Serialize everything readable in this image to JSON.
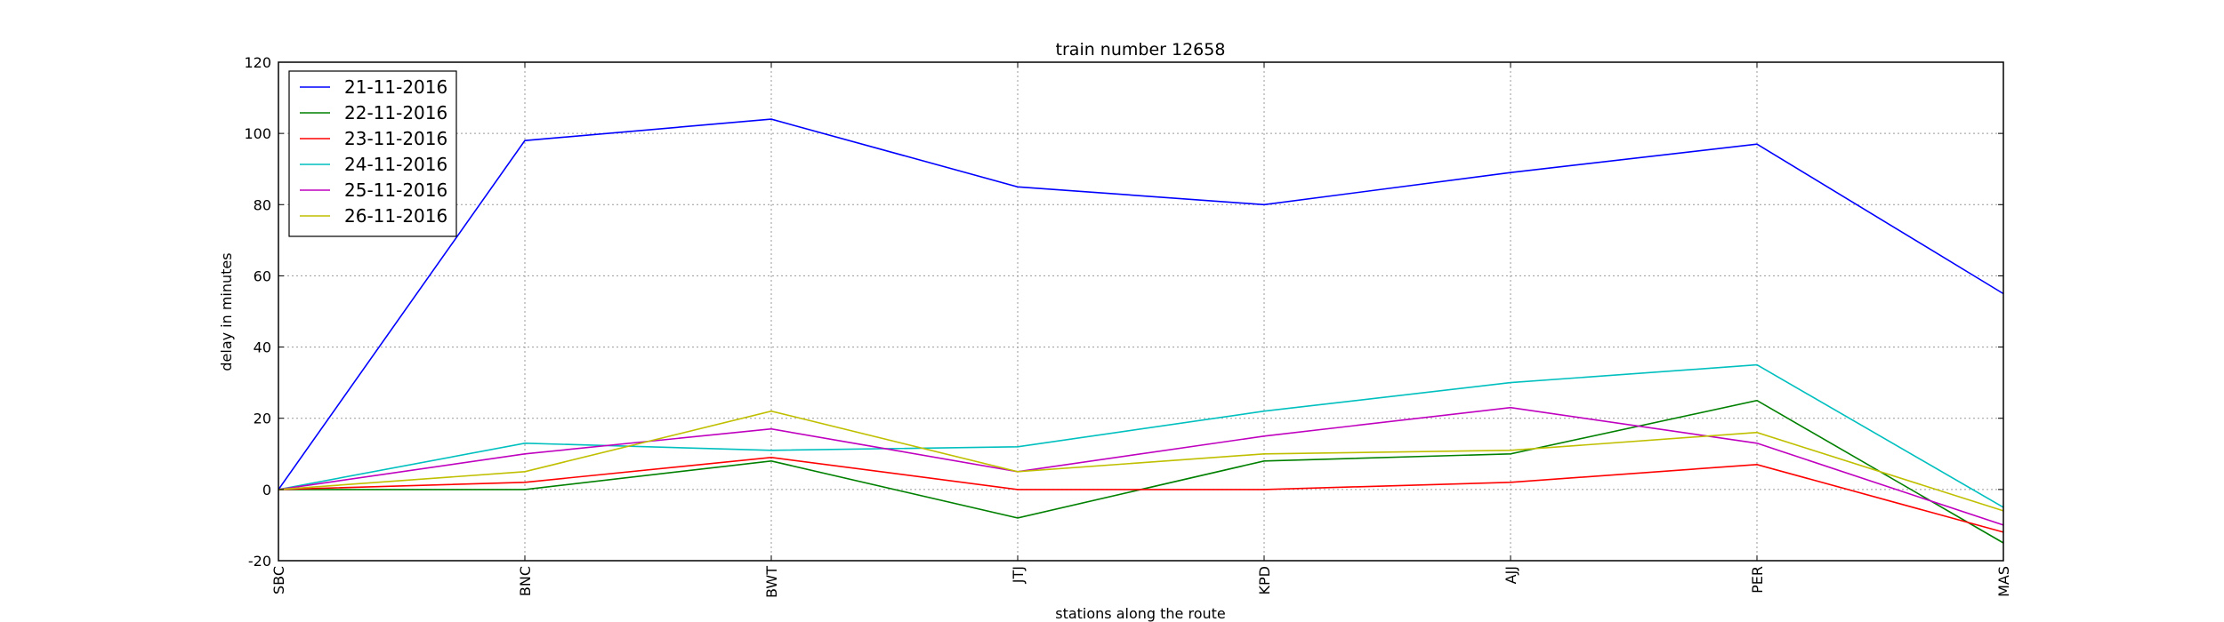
{
  "chart_data": {
    "type": "line",
    "title": "train number 12658",
    "xlabel": "stations along the route",
    "ylabel": "delay in minutes",
    "categories": [
      "SBC",
      "BNC",
      "BWT",
      "JTJ",
      "KPD",
      "AJJ",
      "PER",
      "MAS"
    ],
    "ylim": [
      -20,
      120
    ],
    "yticks": [
      -20,
      0,
      20,
      40,
      60,
      80,
      100,
      120
    ],
    "grid": true,
    "legend_position": "top-left",
    "series": [
      {
        "name": "21-11-2016",
        "color": "#0000ff",
        "values": [
          0,
          98,
          104,
          85,
          80,
          89,
          97,
          55
        ]
      },
      {
        "name": "22-11-2016",
        "color": "#008000",
        "values": [
          0,
          0,
          8,
          -8,
          8,
          10,
          25,
          -15
        ]
      },
      {
        "name": "23-11-2016",
        "color": "#ff0000",
        "values": [
          0,
          2,
          9,
          0,
          0,
          2,
          7,
          -12
        ]
      },
      {
        "name": "24-11-2016",
        "color": "#00bfbf",
        "values": [
          0,
          13,
          11,
          12,
          22,
          30,
          35,
          -5
        ]
      },
      {
        "name": "25-11-2016",
        "color": "#bf00bf",
        "values": [
          0,
          10,
          17,
          5,
          15,
          23,
          13,
          -10
        ]
      },
      {
        "name": "26-11-2016",
        "color": "#bfbf00",
        "values": [
          0,
          5,
          22,
          5,
          10,
          11,
          16,
          -6
        ]
      }
    ]
  }
}
